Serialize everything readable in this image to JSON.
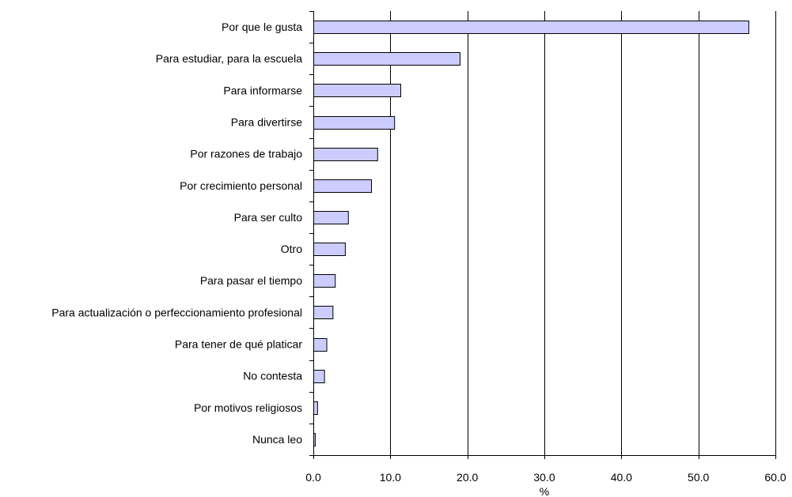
{
  "chart_data": {
    "type": "bar",
    "orientation": "horizontal",
    "categories": [
      "Por que le gusta",
      "Para estudiar, para la escuela",
      "Para informarse",
      "Para divertirse",
      "Por razones de trabajo",
      "Por crecimiento personal",
      "Para ser culto",
      "Otro",
      "Para pasar el tiempo",
      "Para actualización o perfeccionamiento profesional",
      "Para tener de qué platicar",
      "No contesta",
      "Por motivos religiosos",
      "Nunca leo"
    ],
    "values": [
      56.5,
      19.0,
      11.3,
      10.5,
      8.3,
      7.5,
      4.5,
      4.1,
      2.8,
      2.5,
      1.7,
      1.4,
      0.5,
      0.2
    ],
    "xlabel": "%",
    "ylabel": "",
    "xlim": [
      0,
      60
    ],
    "xticks": [
      "0.0",
      "10.0",
      "20.0",
      "30.0",
      "40.0",
      "50.0",
      "60.0"
    ],
    "grid": "vertical",
    "legend": "none",
    "bar_color": "#ccccff",
    "bar_edge_color": "#000000"
  }
}
